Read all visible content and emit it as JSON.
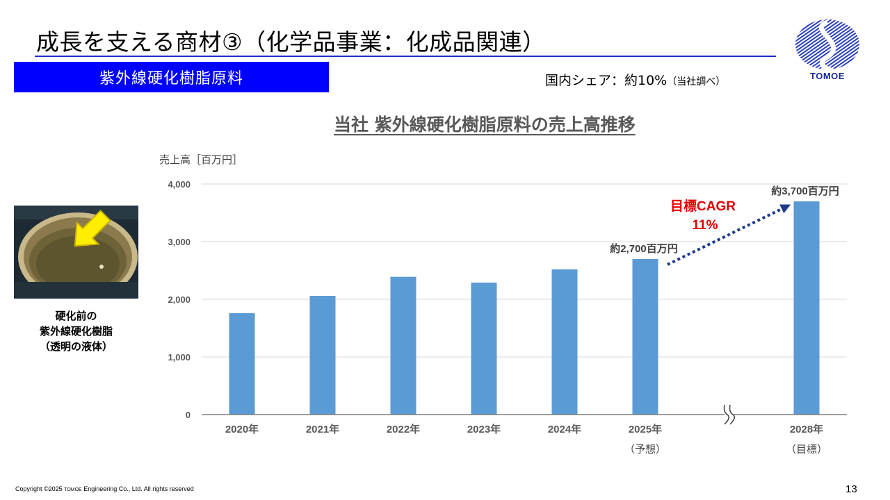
{
  "slide": {
    "title": "成長を支える商材③（化学品事業：化成品関連）",
    "category": "紫外線硬化樹脂原料",
    "share_text": "国内シェア：約10%",
    "share_note": "（当社調べ）",
    "page_number": "13"
  },
  "logo": {
    "text": "TOMOE",
    "color": "#1a2a8c"
  },
  "photo": {
    "caption_lines": [
      "硬化前の",
      "紫外線硬化樹脂",
      "（透明の液体）"
    ]
  },
  "footer": {
    "copyright_prefix": "Copyright ©2025 ",
    "copyright_brand": "TOMOE",
    "copyright_suffix": " Engineering Co., Ltd. All rights reserved"
  },
  "colors": {
    "accent": "#0000ff",
    "rule": "#1f2bd0",
    "bar": "#5b9bd5",
    "cagr": "#e00000",
    "arrow": "#1f3a8a"
  },
  "chart_data": {
    "type": "bar",
    "title": "当社 紫外線硬化樹脂原料の売上高推移",
    "ylabel": "売上高［百万円］",
    "xlabel": "",
    "ylim": [
      0,
      4000
    ],
    "yticks": [
      0,
      1000,
      2000,
      3000,
      4000
    ],
    "ytick_labels": [
      "0",
      "1,000",
      "2,000",
      "3,000",
      "4,000"
    ],
    "categories": [
      "2020年",
      "2021年",
      "2022年",
      "2023年",
      "2024年",
      "2025年",
      "",
      "2028年"
    ],
    "category_notes": [
      "",
      "",
      "",
      "",
      "",
      "（予想）",
      "",
      "（目標）"
    ],
    "values": [
      1760,
      2060,
      2390,
      2290,
      2520,
      2700,
      null,
      3700
    ],
    "bar_labels": [
      "",
      "",
      "",
      "",
      "",
      "約2,700百万円",
      "",
      "約3,700百万円"
    ],
    "axis_break_index": 6,
    "annotation": {
      "text_line1": "目標CAGR",
      "text_line2": "11%",
      "from_index": 5,
      "to_index": 7
    },
    "grid": true,
    "legend": "none"
  }
}
